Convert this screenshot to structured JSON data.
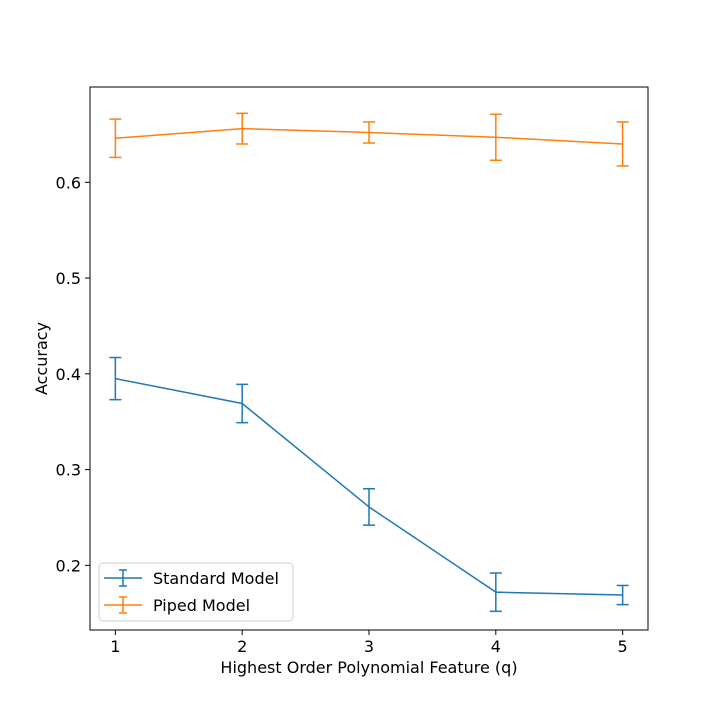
{
  "chart_data": {
    "type": "line",
    "title": "",
    "xlabel": "Highest Order Polynomial Feature (q)",
    "ylabel": "Accuracy",
    "x": [
      1,
      2,
      3,
      4,
      5
    ],
    "xlim": [
      0.8,
      5.2
    ],
    "ylim": [
      0.1325,
      0.6995
    ],
    "xticks": [
      1,
      2,
      3,
      4,
      5
    ],
    "yticks": [
      0.2,
      0.3,
      0.4,
      0.5,
      0.6
    ],
    "ytick_labels": [
      "0.2",
      "0.3",
      "0.4",
      "0.5",
      "0.6"
    ],
    "grid": false,
    "legend_position": "lower-left",
    "series": [
      {
        "name": "Standard Model",
        "color": "#1f77b4",
        "values": [
          0.395,
          0.369,
          0.261,
          0.172,
          0.169
        ],
        "errors": [
          0.022,
          0.02,
          0.019,
          0.02,
          0.01
        ]
      },
      {
        "name": "Piped Model",
        "color": "#ff7f0e",
        "values": [
          0.646,
          0.656,
          0.652,
          0.647,
          0.64
        ],
        "errors": [
          0.02,
          0.016,
          0.011,
          0.024,
          0.023
        ]
      }
    ]
  }
}
